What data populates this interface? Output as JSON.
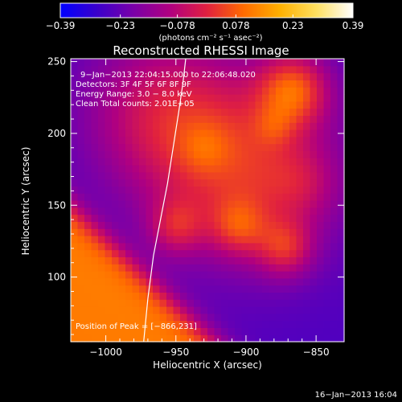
{
  "chart_data": {
    "type": "heatmap",
    "title": "Reconstructed RHESSI Image",
    "xlabel": "Heliocentric X (arcsec)",
    "ylabel": "Heliocentric Y (arcsec)",
    "xlim": [
      -1025,
      -830
    ],
    "ylim": [
      55,
      252
    ],
    "x_ticks": [
      -1000,
      -950,
      -900,
      -850
    ],
    "x_tick_labels": [
      "−1000",
      "−950",
      "−900",
      "−850"
    ],
    "y_ticks": [
      100,
      150,
      200,
      250
    ],
    "y_tick_labels": [
      "100",
      "150",
      "200",
      "250"
    ],
    "colorbar": {
      "vmin": -0.39,
      "vmax": 0.39,
      "ticks": [
        -0.39,
        -0.23,
        -0.078,
        0.078,
        0.23,
        0.39
      ],
      "tick_labels": [
        "−0.39",
        "−0.23",
        "−0.078",
        "0.078",
        "0.23",
        "0.39"
      ],
      "unit_label": "(photons cm⁻² s⁻¹ asec⁻²)",
      "colors": [
        "#0000ff",
        "#3a00cc",
        "#7a00a8",
        "#b00080",
        "#e02040",
        "#ff6a00",
        "#ffb000",
        "#ffe060",
        "#ffffff"
      ]
    },
    "overlay_lines": [
      "9−Jan−2013 22:04:15.000 to 22:06:48.020",
      "Detectors: 3F 4F 5F 6F 8F 9F",
      "Energy Range: 3.0 − 8.0 keV",
      "Clean      Total counts: 2.01E+05"
    ],
    "peak_label": "Position of Peak = [−866,231]",
    "peak_position": [
      -866,
      231
    ],
    "limb_curve": [
      [
        -973,
        55
      ],
      [
        -970,
        85
      ],
      [
        -966,
        115
      ],
      [
        -961,
        140
      ],
      [
        -956,
        165
      ],
      [
        -952,
        190
      ],
      [
        -948,
        215
      ],
      [
        -945,
        235
      ],
      [
        -943,
        252
      ]
    ],
    "field": {
      "background": 0.12,
      "sources": [
        {
          "x": -866,
          "y": 231,
          "amp": 0.27,
          "sigma": 18
        },
        {
          "x": -900,
          "y": 175,
          "amp": 0.25,
          "sigma": 45
        },
        {
          "x": -960,
          "y": 215,
          "amp": 0.2,
          "sigma": 40
        },
        {
          "x": -880,
          "y": 205,
          "amp": 0.07,
          "sigma": 10
        },
        {
          "x": -930,
          "y": 190,
          "amp": 0.06,
          "sigma": 12
        },
        {
          "x": -950,
          "y": 135,
          "amp": 0.16,
          "sigma": 14
        },
        {
          "x": -905,
          "y": 135,
          "amp": 0.16,
          "sigma": 14
        },
        {
          "x": -872,
          "y": 120,
          "amp": 0.19,
          "sigma": 14
        },
        {
          "x": -860,
          "y": 165,
          "amp": 0.08,
          "sigma": 18
        }
      ],
      "dark_region": {
        "x0": -1025,
        "y0": 150,
        "x1": -922,
        "y1": 55,
        "depth": 0.38,
        "width": 22
      }
    }
  },
  "footer": {
    "date": "16−Jan−2013 16:04"
  }
}
